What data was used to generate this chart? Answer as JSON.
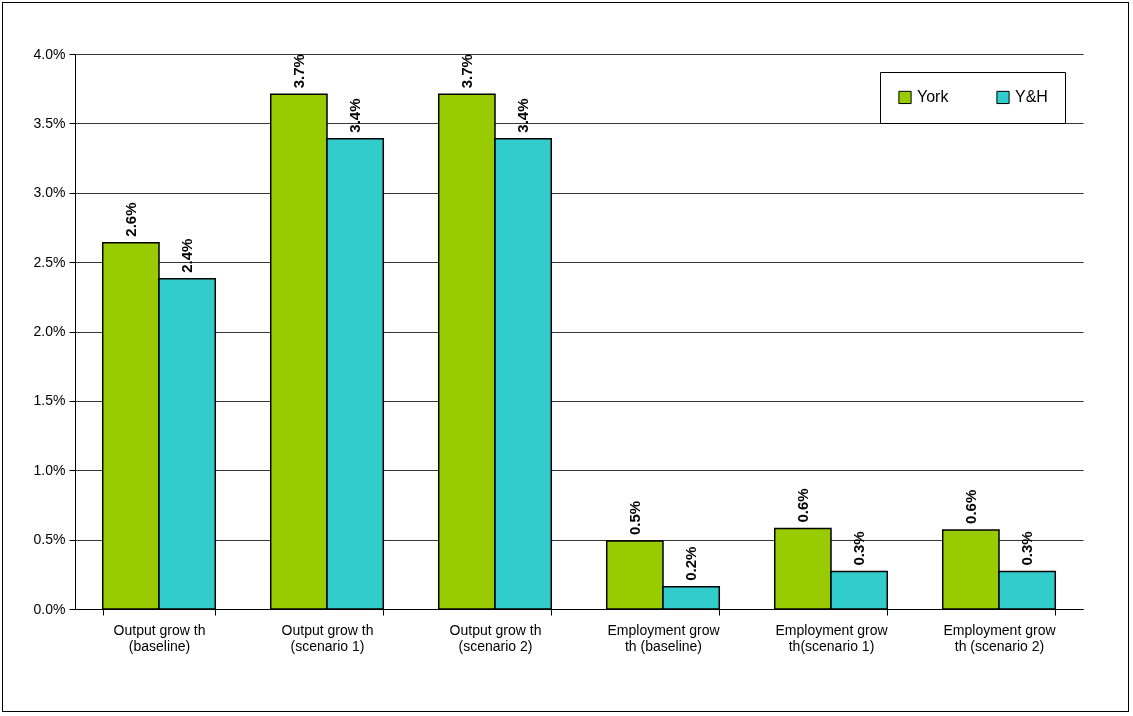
{
  "chart_data": {
    "type": "bar",
    "categories": [
      "Output grow th (baseline)",
      "Output grow th (scenario 1)",
      "Output grow th (scenario 2)",
      "Employment grow th (baseline)",
      "Employment grow th(scenario 1)",
      "Employment grow th (scenario 2)"
    ],
    "series": [
      {
        "name": "York",
        "color": "#99cc00",
        "values": [
          2.64,
          3.71,
          3.71,
          0.49,
          0.58,
          0.57
        ],
        "value_labels": [
          "2.6%",
          "3.7%",
          "3.7%",
          "0.5%",
          "0.6%",
          "0.6%"
        ]
      },
      {
        "name": "Y&H",
        "color": "#33cccc",
        "values": [
          2.38,
          3.39,
          3.39,
          0.16,
          0.27,
          0.27
        ],
        "value_labels": [
          "2.4%",
          "3.4%",
          "3.4%",
          "0.2%",
          "0.3%",
          "0.3%"
        ]
      }
    ],
    "ylim": [
      0,
      4
    ],
    "yticks": [
      {
        "value": 0,
        "label": "0.0%"
      },
      {
        "value": 0.5,
        "label": "0.5%"
      },
      {
        "value": 1,
        "label": "1.0%"
      },
      {
        "value": 1.5,
        "label": "1.5%"
      },
      {
        "value": 2,
        "label": "2.0%"
      },
      {
        "value": 2.5,
        "label": "2.5%"
      },
      {
        "value": 3,
        "label": "3.0%"
      },
      {
        "value": 3.5,
        "label": "3.5%"
      },
      {
        "value": 4,
        "label": "4.0%"
      }
    ],
    "grid": "y",
    "legend": "top right"
  }
}
